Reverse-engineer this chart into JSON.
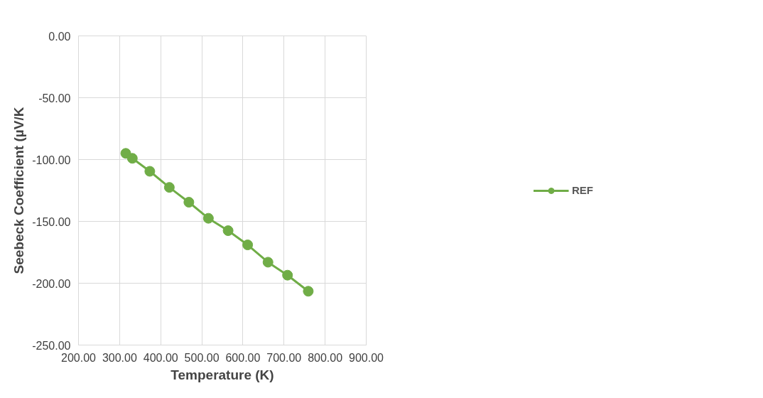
{
  "chart_data": {
    "type": "line",
    "xlabel": "Temperature (K)",
    "ylabel": "Seebeck Coefficient (µV/K",
    "x": [
      315,
      331,
      373.5,
      421,
      468.5,
      516,
      564,
      611.5,
      661,
      708.5,
      759
    ],
    "series": [
      {
        "name": "REF",
        "color": "#70ad47",
        "values": [
          -95,
          -99,
          -109.5,
          -122.5,
          -134.5,
          -147.5,
          -157.5,
          -169,
          -183,
          -193.5,
          -206.5
        ]
      }
    ],
    "xlim": [
      200,
      900
    ],
    "xticks": [
      {
        "value": 200,
        "label": "200.00"
      },
      {
        "value": 300,
        "label": "300.00"
      },
      {
        "value": 400,
        "label": "400.00"
      },
      {
        "value": 500,
        "label": "500.00"
      },
      {
        "value": 600,
        "label": "600.00"
      },
      {
        "value": 700,
        "label": "700.00"
      },
      {
        "value": 800,
        "label": "800.00"
      },
      {
        "value": 900,
        "label": "900.00"
      }
    ],
    "ylim": [
      -250,
      0
    ],
    "yticks": [
      {
        "value": -250,
        "label": "-250.00"
      },
      {
        "value": -200,
        "label": "-200.00"
      },
      {
        "value": -150,
        "label": "-150.00"
      },
      {
        "value": -100,
        "label": "-100.00"
      },
      {
        "value": -50,
        "label": "-50.00"
      },
      {
        "value": 0,
        "label": "0.00"
      }
    ],
    "grid": true,
    "legend": "right",
    "marker": "circle",
    "line_style": "solid"
  }
}
